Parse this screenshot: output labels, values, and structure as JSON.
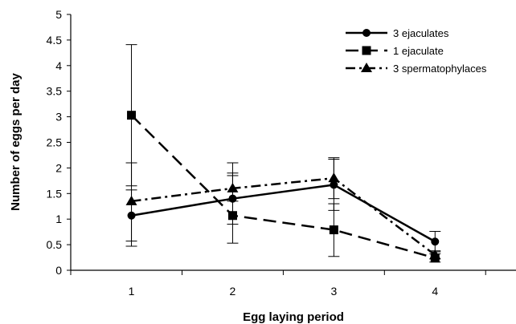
{
  "chart_data": {
    "type": "line",
    "title": "",
    "xlabel": "Egg laying period",
    "ylabel": "Number of eggs per day",
    "x": [
      1,
      2,
      3,
      4
    ],
    "x_tick_labels": [
      "1",
      "2",
      "3",
      "4"
    ],
    "xlim": [
      0.4,
      4.8
    ],
    "ylim": [
      0,
      5
    ],
    "y_ticks": [
      0,
      0.5,
      1,
      1.5,
      2,
      2.5,
      3,
      3.5,
      4,
      4.5,
      5
    ],
    "y_tick_labels": [
      "0",
      "0.5",
      "1",
      "1.5",
      "2",
      "2.5",
      "3",
      "3.5",
      "4",
      "4.5",
      "5"
    ],
    "grid": false,
    "legend_position": "top-right",
    "series": [
      {
        "name": "3 ejaculates",
        "marker": "circle",
        "line_style": "solid",
        "color": "#000000",
        "values": [
          1.07,
          1.4,
          1.67,
          0.56
        ],
        "error_low": [
          0.57,
          0.9,
          1.17,
          0.36
        ],
        "error_high": [
          1.57,
          1.9,
          2.17,
          0.76
        ]
      },
      {
        "name": "1 ejaculate",
        "marker": "square",
        "line_style": "dashed",
        "color": "#000000",
        "values": [
          3.03,
          1.07,
          0.79,
          0.24
        ],
        "error_low": [
          1.65,
          0.53,
          0.27,
          0.16
        ],
        "error_high": [
          4.41,
          2.1,
          1.3,
          0.32
        ]
      },
      {
        "name": "3 spermatophylaces",
        "marker": "triangle",
        "line_style": "dashdot",
        "color": "#000000",
        "values": [
          1.35,
          1.6,
          1.8,
          0.3
        ],
        "error_low": [
          0.47,
          1.35,
          1.4,
          0.22
        ],
        "error_high": [
          2.1,
          1.85,
          2.2,
          0.38
        ]
      }
    ]
  }
}
